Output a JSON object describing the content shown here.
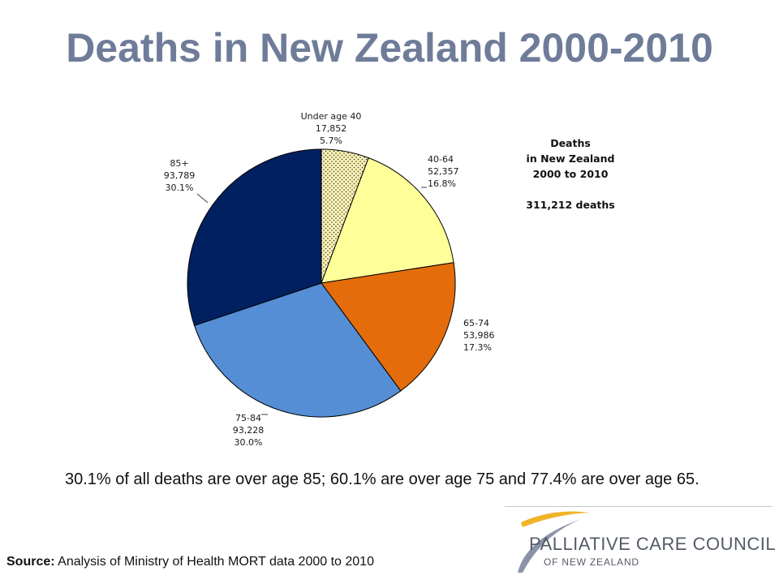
{
  "slide": {
    "title": "Deaths in New Zealand 2000-2010",
    "summary": "30.1% of all deaths are over age 85; 60.1% are over age 75 and 77.4% are over age 65.",
    "source_label": "Source:",
    "source_text": " Analysis of Ministry of Health MORT data 2000 to 2010"
  },
  "logo": {
    "main": "PALLIATIVE CARE COUNCIL",
    "sub": "OF NEW ZEALAND"
  },
  "chart_data": {
    "type": "pie",
    "title": "",
    "annotation": [
      "Deaths",
      "in New Zealand",
      "2000 to 2010",
      "",
      "311,212 deaths"
    ],
    "start": "top, clockwise",
    "slices": [
      {
        "label": "Under age 40",
        "value": 17852,
        "value_text": "17,852",
        "percent_text": "5.7%",
        "color": "#fdf3b4",
        "pattern": "dots"
      },
      {
        "label": "40-64",
        "value": 52357,
        "value_text": "52,357",
        "percent_text": "16.8%",
        "color": "#ffff99"
      },
      {
        "label": "65-74",
        "value": 53986,
        "value_text": "53,986",
        "percent_text": "17.3%",
        "color": "#e46c0a"
      },
      {
        "label": "75-84",
        "value": 93228,
        "value_text": "93,228",
        "percent_text": "30.0%",
        "color": "#558ed5"
      },
      {
        "label": "85+",
        "value": 93789,
        "value_text": "93,789",
        "percent_text": "30.1%",
        "color": "#002060"
      }
    ]
  }
}
